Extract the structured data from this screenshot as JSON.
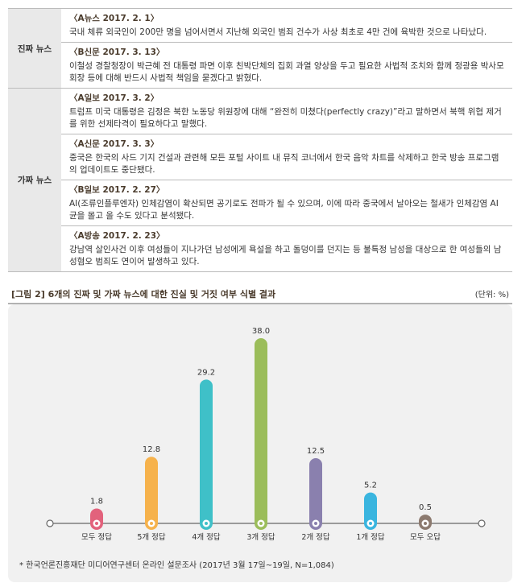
{
  "table": {
    "groups": [
      {
        "label": "진짜 뉴스",
        "items": [
          {
            "heading": "〈A뉴스 2017. 2. 1〉",
            "text": "국내 체류 외국인이 200만 명을 넘어서면서 지난해 외국인 범죄 건수가 사상 최초로 4만 건에 육박한 것으로 나타났다."
          },
          {
            "heading": "〈B신문 2017. 3. 13〉",
            "text": "이철성 경찰청장이 박근혜 전 대통령 파면 이후 친박단체의 집회 과열 양상을 두고 필요한 사법적 조치와 함께 정광용 박사모 회장 등에 대해 반드시 사법적 책임을 묻겠다고 밝혔다."
          }
        ]
      },
      {
        "label": "가짜 뉴스",
        "items": [
          {
            "heading": "〈A일보 2017. 3. 2〉",
            "text": "트럼프 미국 대통령은 김정은 북한 노동당 위원장에 대해 “완전히 미쳤다(perfectly crazy)”라고 말하면서 북핵 위협 제거를 위한 선제타격이 필요하다고 말했다."
          },
          {
            "heading": "〈A신문 2017. 3. 3〉",
            "text": "중국은 한국의 사드 기지 건설과 관련해 모든 포털 사이트 내 뮤직 코너에서 한국 음악 차트를 삭제하고 한국 방송 프로그램의 업데이트도 중단됐다."
          },
          {
            "heading": "〈B일보 2017. 2. 27〉",
            "text": "AI(조류인플루엔자) 인체감염이 확산되면 공기로도 전파가 될 수 있으며, 이에 따라 중국에서 날아오는 철새가 인체감염 AI 균을 몰고 올 수도 있다고 분석됐다."
          },
          {
            "heading": "〈A방송 2017. 2. 23〉",
            "text": "강남역 살인사건 이후 여성들이 지나가던 남성에게 욕설을 하고 돌덩이를 던지는 등 불특정 남성을 대상으로 한 여성들의 남성혐오 범죄도 연이어 발생하고 있다."
          }
        ]
      }
    ]
  },
  "chart_data": {
    "type": "bar",
    "title": "[그림 2]  6개의 진짜 및 가짜 뉴스에 대한 진실 및 거짓 여부 식별 결과",
    "unit": "(단위: %)",
    "categories": [
      "모두 정답",
      "5개 정답",
      "4개 정답",
      "3개 정답",
      "2개 정답",
      "1개 정답",
      "모두 오답"
    ],
    "values": [
      1.8,
      12.8,
      29.2,
      38.0,
      12.5,
      5.2,
      0.5
    ],
    "value_labels": [
      "1.8",
      "12.8",
      "29.2",
      "38.0",
      "12.5",
      "5.2",
      "0.5"
    ],
    "colors": [
      "#e2627c",
      "#f6b24c",
      "#3fc0c8",
      "#9bbd5a",
      "#8a80ae",
      "#3ab5df",
      "#8c7a6f"
    ],
    "source": "* 한국언론진흥재단 미디어연구센터 온라인 설문조사 (2017년 3월 17일~19일, N=1,084)"
  }
}
